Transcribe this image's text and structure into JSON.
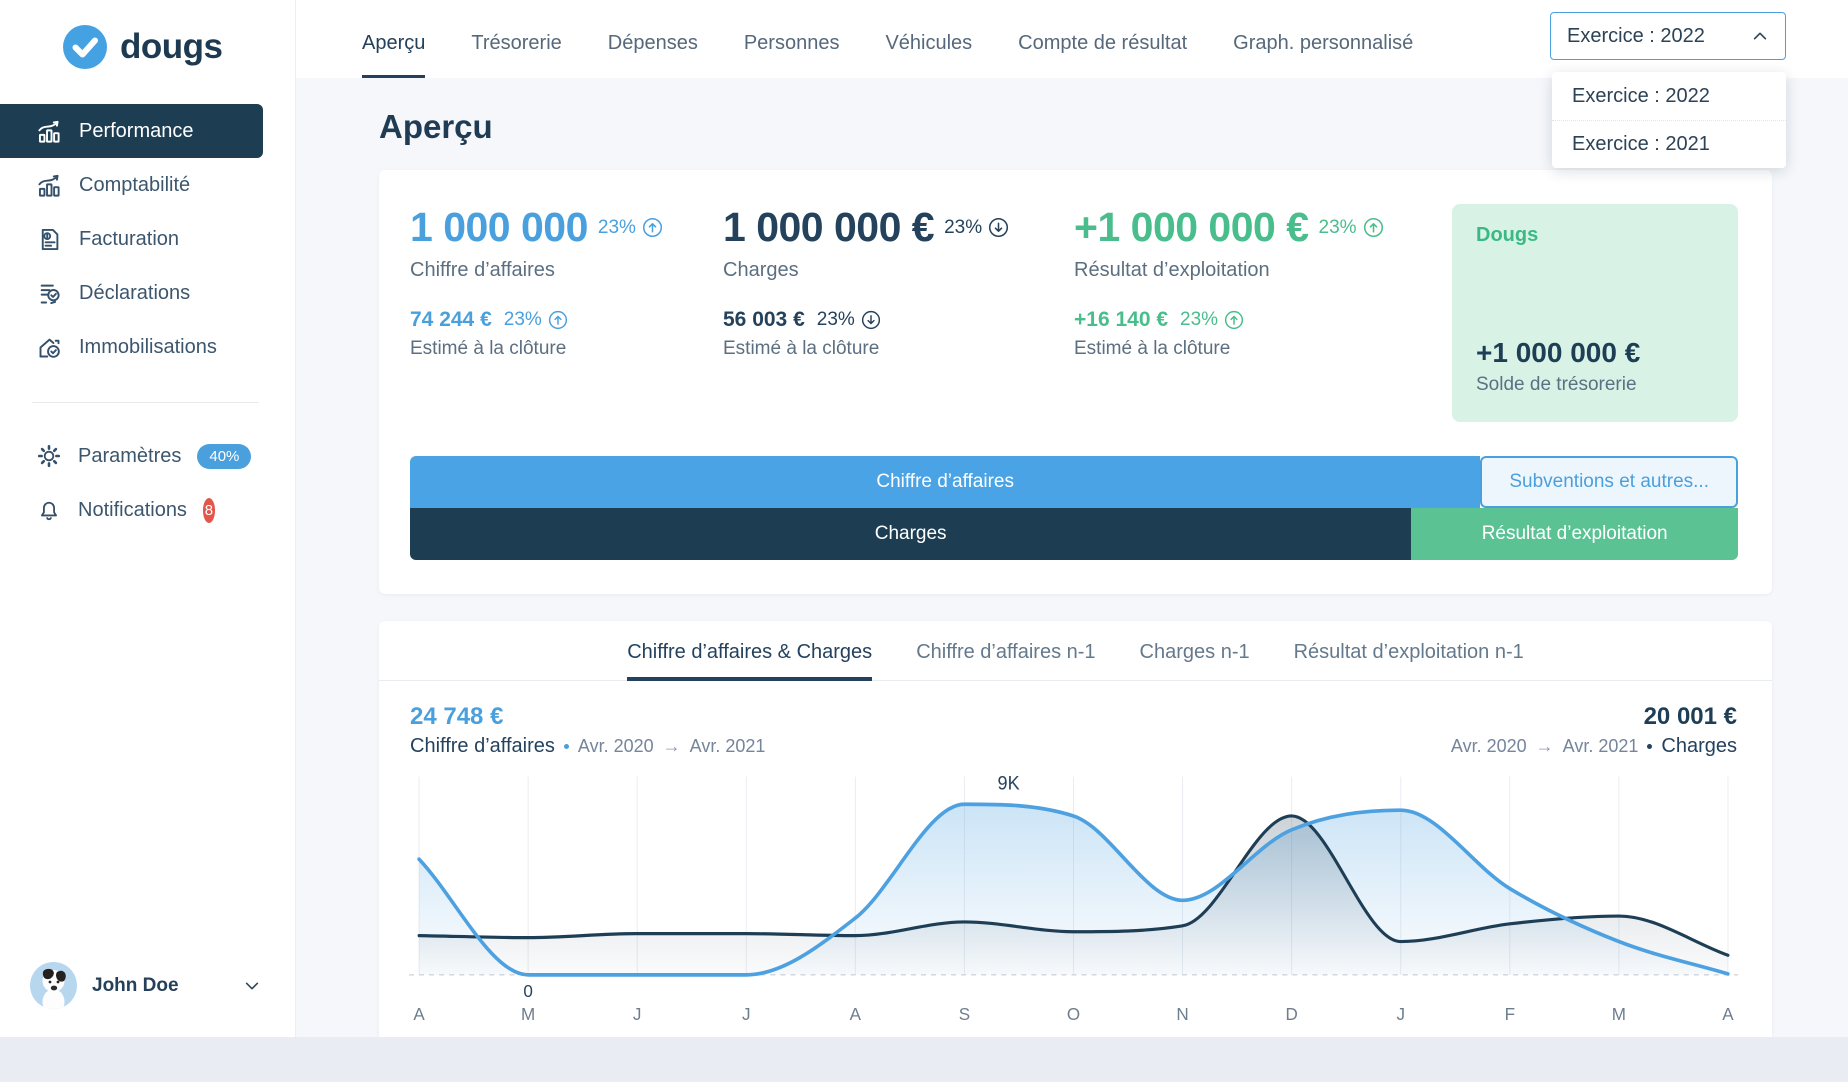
{
  "sidebar": {
    "logo": {
      "text": "dougs"
    },
    "items": [
      {
        "label": "Performance"
      },
      {
        "label": "Comptabilité"
      },
      {
        "label": "Facturation"
      },
      {
        "label": "Déclarations"
      },
      {
        "label": "Immobilisations"
      }
    ],
    "settings": {
      "label": "Paramètres",
      "badge": "40%"
    },
    "notifications": {
      "label": "Notifications",
      "badge": "8"
    },
    "user": {
      "name": "John Doe"
    }
  },
  "topnav": {
    "tabs": [
      {
        "label": "Aperçu"
      },
      {
        "label": "Trésorerie"
      },
      {
        "label": "Dépenses"
      },
      {
        "label": "Personnes"
      },
      {
        "label": "Véhicules"
      },
      {
        "label": "Compte de résultat"
      },
      {
        "label": "Graph. personnalisé"
      }
    ],
    "active_tab": "Aperçu",
    "exercice": {
      "selected": "Exercice : 2022",
      "options": [
        "Exercice : 2022",
        "Exercice : 2021"
      ]
    }
  },
  "page": {
    "title": "Aperçu"
  },
  "overview": {
    "stats": [
      {
        "value": "1 000 000",
        "change": "23%",
        "trend": "up",
        "label": "Chiffre d’affaires",
        "estimate_value": "74 244 €",
        "estimate_change": "23%",
        "estimate_trend": "up",
        "estimate_label": "Estimé à la clôture"
      },
      {
        "value": "1 000 000 €",
        "change": "23%",
        "trend": "down",
        "label": "Charges",
        "estimate_value": "56 003 €",
        "estimate_change": "23%",
        "estimate_trend": "down",
        "estimate_label": "Estimé à la clôture"
      },
      {
        "value": "+1 000 000 €",
        "change": "23%",
        "trend": "up",
        "label": "Résultat d’exploitation",
        "estimate_value": "+16 140 €",
        "estimate_change": "23%",
        "estimate_trend": "up",
        "estimate_label": "Estimé à la clôture"
      }
    ],
    "treasury": {
      "company": "Dougs",
      "value": "+1 000 000 €",
      "label": "Solde de trésorerie"
    },
    "bars": {
      "row1": [
        {
          "label": "Chiffre d’affaires",
          "width_pct": 80.6
        },
        {
          "label": "Subventions et autres...",
          "width_pct": 19.4
        }
      ],
      "row2": [
        {
          "label": "Charges",
          "width_pct": 75.4
        },
        {
          "label": "Résultat d’exploitation",
          "width_pct": 24.6
        }
      ]
    }
  },
  "chart_card": {
    "tabs": [
      {
        "label": "Chiffre d’affaires & Charges"
      },
      {
        "label": "Chiffre d’affaires n-1"
      },
      {
        "label": "Charges n-1"
      },
      {
        "label": "Résultat d’exploitation n-1"
      }
    ],
    "active_tab": "Chiffre d’affaires & Charges",
    "legend_left": {
      "value": "24 748 €",
      "series": "Chiffre d’affaires",
      "from": "Avr. 2020",
      "arrow": "→",
      "to": "Avr. 2021"
    },
    "legend_right": {
      "value": "20 001 €",
      "series": "Charges",
      "from": "Avr. 2020",
      "arrow": "→",
      "to": "Avr. 2021"
    }
  },
  "chart_data": {
    "type": "area",
    "x_labels": [
      "A",
      "M",
      "J",
      "J",
      "A",
      "S",
      "O",
      "N",
      "D",
      "J",
      "F",
      "M",
      "A"
    ],
    "period": "Avr. 2020 → Avr. 2021",
    "series": [
      {
        "name": "Chiffre d’affaires",
        "color": "#4da1e0",
        "fill_from": "rgba(77,161,224,0.30)",
        "fill_to": "rgba(77,161,224,0.02)",
        "values": [
          5900,
          0,
          0,
          0,
          2900,
          8700,
          8100,
          3800,
          7400,
          8400,
          4400,
          1700,
          50
        ]
      },
      {
        "name": "Charges",
        "color": "#1e3e56",
        "fill_from": "rgba(30,62,86,0.25)",
        "fill_to": "rgba(30,62,86,0.02)",
        "values": [
          2000,
          1900,
          2100,
          2100,
          2000,
          2700,
          2200,
          2500,
          8100,
          1700,
          2600,
          3000,
          1000
        ]
      }
    ],
    "annotations": [
      {
        "text": "9K",
        "series": "Chiffre d’affaires",
        "x_index": 5,
        "position": "above-peak"
      },
      {
        "text": "0",
        "x_index": 1,
        "position": "below-zero"
      }
    ],
    "ylim": [
      0,
      9500
    ],
    "grid": "vertical-monthly",
    "zero_line": "dashed",
    "legend_position": "top"
  },
  "colors": {
    "accent_blue": "#4aa0dd",
    "navy": "#1e3e56",
    "green": "#49bd8b",
    "green_bg": "#d9f2e6",
    "badge_blue": "#4a9fdd",
    "badge_red": "#e2574c"
  }
}
